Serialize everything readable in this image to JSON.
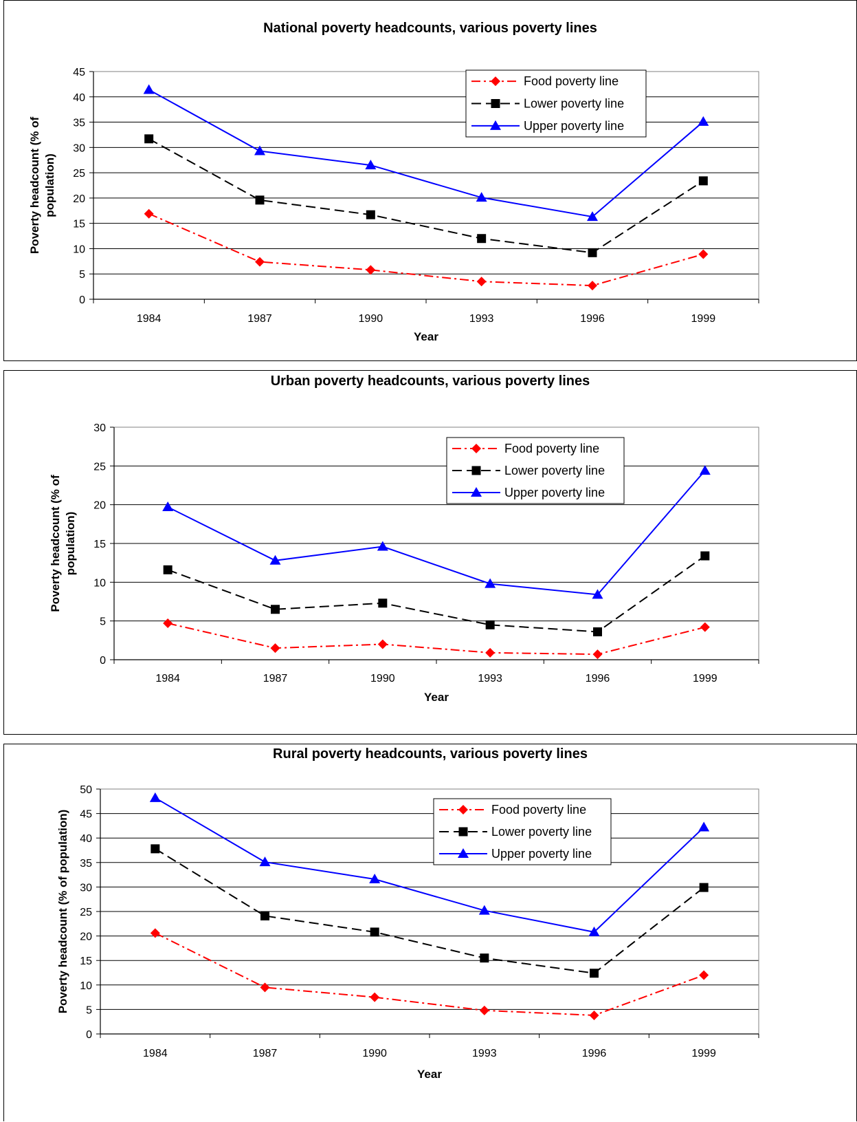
{
  "chart_data": [
    {
      "type": "line",
      "title": "National poverty headcounts, various poverty lines",
      "xlabel": "Year",
      "ylabel": [
        "Poverty headcount (% of",
        "population)"
      ],
      "categories": [
        "1984",
        "1987",
        "1990",
        "1993",
        "1996",
        "1999"
      ],
      "ylim": [
        0,
        45
      ],
      "ytick_step": 5,
      "grid": "horizontal",
      "legend_position": "top-right",
      "series": [
        {
          "name": "Food poverty line",
          "color": "#ff0000",
          "marker": "diamond",
          "dash": "dash-dot",
          "values": [
            16.9,
            7.4,
            5.8,
            3.5,
            2.7,
            8.9
          ]
        },
        {
          "name": "Lower poverty line",
          "color": "#000000",
          "marker": "square",
          "dash": "dash",
          "values": [
            31.7,
            19.6,
            16.7,
            12.0,
            9.2,
            23.4
          ]
        },
        {
          "name": "Upper poverty line",
          "color": "#0000ff",
          "marker": "triangle",
          "dash": "solid",
          "values": [
            41.4,
            29.3,
            26.5,
            20.1,
            16.3,
            35.1
          ]
        }
      ]
    },
    {
      "type": "line",
      "title": "Urban poverty headcounts, various poverty lines",
      "xlabel": "Year",
      "ylabel": [
        "Poverty headcount (% of",
        "population)"
      ],
      "categories": [
        "1984",
        "1987",
        "1990",
        "1993",
        "1996",
        "1999"
      ],
      "ylim": [
        0,
        30
      ],
      "ytick_step": 5,
      "grid": "horizontal",
      "legend_position": "top-right",
      "series": [
        {
          "name": "Food poverty line",
          "color": "#ff0000",
          "marker": "diamond",
          "dash": "dash-dot",
          "values": [
            4.7,
            1.5,
            2.0,
            0.9,
            0.7,
            4.2
          ]
        },
        {
          "name": "Lower poverty line",
          "color": "#000000",
          "marker": "square",
          "dash": "dash",
          "values": [
            11.6,
            6.5,
            7.3,
            4.5,
            3.6,
            13.4
          ]
        },
        {
          "name": "Upper poverty line",
          "color": "#0000ff",
          "marker": "triangle",
          "dash": "solid",
          "values": [
            19.7,
            12.8,
            14.6,
            9.8,
            8.4,
            24.4
          ]
        }
      ]
    },
    {
      "type": "line",
      "title": "Rural poverty headcounts, various poverty lines",
      "xlabel": "Year",
      "ylabel": [
        "Poverty headcount (% of population)"
      ],
      "categories": [
        "1984",
        "1987",
        "1990",
        "1993",
        "1996",
        "1999"
      ],
      "ylim": [
        0,
        50
      ],
      "ytick_step": 5,
      "grid": "horizontal",
      "legend_position": "top-right",
      "series": [
        {
          "name": "Food poverty line",
          "color": "#ff0000",
          "marker": "diamond",
          "dash": "dash-dot",
          "values": [
            20.6,
            9.5,
            7.5,
            4.8,
            3.8,
            12.0
          ]
        },
        {
          "name": "Lower poverty line",
          "color": "#000000",
          "marker": "square",
          "dash": "dash",
          "values": [
            37.8,
            24.1,
            20.8,
            15.5,
            12.4,
            29.9
          ]
        },
        {
          "name": "Upper poverty line",
          "color": "#0000ff",
          "marker": "triangle",
          "dash": "solid",
          "values": [
            48.2,
            35.1,
            31.6,
            25.2,
            20.8,
            42.2
          ]
        }
      ]
    }
  ]
}
